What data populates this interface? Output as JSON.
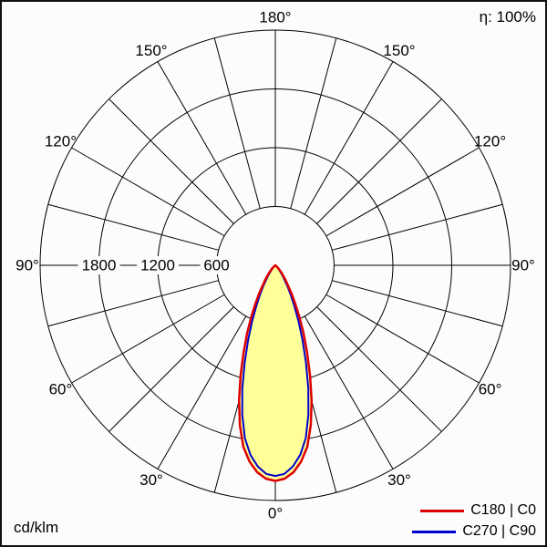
{
  "header": {
    "efficiency_label": "η: 100%"
  },
  "footer": {
    "unit_label": "cd/klm"
  },
  "legend": [
    {
      "label": "C180 | C0",
      "color": "#dd0000"
    },
    {
      "label": "C270 | C90",
      "color": "#0000cc"
    }
  ],
  "chart_data": {
    "type": "polar",
    "subtype": "luminous-intensity-distribution",
    "unit": "cd/klm",
    "orientation": "0 degrees at bottom, 180 degrees at top, symmetric left/right",
    "efficiency": "η: 100%",
    "angle_step_deg": 15,
    "angle_label_values": [
      0,
      30,
      60,
      90,
      120,
      150,
      180
    ],
    "angle_labels": [
      "0°",
      "30°",
      "60°",
      "90°",
      "120°",
      "150°",
      "180°"
    ],
    "ring_values": [
      600,
      1200,
      1800,
      2400
    ],
    "ring_labels": [
      "600",
      "1200",
      "1800"
    ],
    "rmax": 2400,
    "fill_color": "#ffff99",
    "series": [
      {
        "name": "C180 | C0",
        "color": "#dd0000",
        "gamma_deg": [
          0,
          2.5,
          5,
          7.5,
          10,
          12.5,
          15,
          17.5,
          20,
          22.5,
          25,
          27.5,
          30,
          35,
          40,
          45,
          50,
          55,
          60,
          90
        ],
        "values": [
          2200,
          2180,
          2120,
          2020,
          1880,
          1670,
          1430,
          1180,
          950,
          750,
          580,
          440,
          330,
          180,
          95,
          45,
          20,
          8,
          0,
          0
        ]
      },
      {
        "name": "C270 | C90",
        "color": "#0000cc",
        "gamma_deg": [
          0,
          2.5,
          5,
          7.5,
          10,
          12.5,
          15,
          17.5,
          20,
          22.5,
          25,
          27.5,
          30,
          35,
          40,
          45,
          50,
          55,
          60,
          90
        ],
        "values": [
          2150,
          2130,
          2060,
          1950,
          1790,
          1560,
          1300,
          1040,
          810,
          620,
          460,
          340,
          245,
          125,
          60,
          25,
          10,
          0,
          0,
          0
        ]
      }
    ]
  }
}
